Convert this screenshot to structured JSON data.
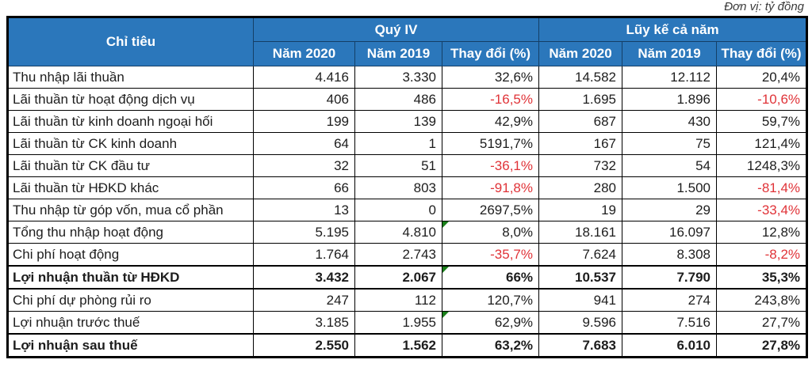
{
  "unit_note": "Đơn vị: tỷ đồng",
  "table": {
    "criteria_header": "Chỉ tiêu",
    "groups": [
      {
        "label": "Quý IV",
        "sub": [
          "Năm 2020",
          "Năm 2019",
          "Thay đổi (%)"
        ]
      },
      {
        "label": "Lũy kế cả năm",
        "sub": [
          "Năm 2020",
          "Năm 2019",
          "Thay đổi (%)"
        ]
      }
    ],
    "rows": [
      {
        "label": "Thu nhập lãi thuần",
        "values": [
          "4.416",
          "3.330",
          "32,6%",
          "14.582",
          "12.112",
          "20,4%"
        ],
        "bold": false,
        "red": [],
        "flags": []
      },
      {
        "label": "Lãi thuần từ hoạt động dịch vụ",
        "values": [
          "406",
          "486",
          "-16,5%",
          "1.695",
          "1.896",
          "-10,6%"
        ],
        "bold": false,
        "red": [
          2,
          5
        ],
        "flags": []
      },
      {
        "label": "Lãi thuần từ kinh doanh ngoại hối",
        "values": [
          "199",
          "139",
          "42,9%",
          "687",
          "430",
          "59,7%"
        ],
        "bold": false,
        "red": [],
        "flags": []
      },
      {
        "label": "Lãi thuần từ CK kinh doanh",
        "values": [
          "64",
          "1",
          "5191,7%",
          "167",
          "75",
          "121,4%"
        ],
        "bold": false,
        "red": [],
        "flags": []
      },
      {
        "label": "Lãi thuần từ CK đầu tư",
        "values": [
          "32",
          "51",
          "-36,1%",
          "732",
          "54",
          "1248,3%"
        ],
        "bold": false,
        "red": [
          2
        ],
        "flags": []
      },
      {
        "label": "Lãi thuần từ HĐKD khác",
        "values": [
          "66",
          "803",
          "-91,8%",
          "280",
          "1.500",
          "-81,4%"
        ],
        "bold": false,
        "red": [
          2,
          5
        ],
        "flags": []
      },
      {
        "label": "Thu nhập từ góp vốn, mua cổ phần",
        "values": [
          "13",
          "0",
          "2697,5%",
          "19",
          "29",
          "-33,4%"
        ],
        "bold": false,
        "red": [
          5
        ],
        "flags": []
      },
      {
        "label": "Tổng thu nhập hoạt động",
        "values": [
          "5.195",
          "4.810",
          "8,0%",
          "18.161",
          "16.097",
          "12,8%"
        ],
        "bold": false,
        "red": [],
        "flags": [
          2
        ]
      },
      {
        "label": "Chi phí hoạt động",
        "values": [
          "1.764",
          "2.743",
          "-35,7%",
          "7.624",
          "8.308",
          "-8,2%"
        ],
        "bold": false,
        "red": [
          2,
          5
        ],
        "flags": []
      },
      {
        "label": "Lợi nhuận thuần từ HĐKD",
        "values": [
          "3.432",
          "2.067",
          "66%",
          "10.537",
          "7.790",
          "35,3%"
        ],
        "bold": true,
        "red": [],
        "flags": [
          2
        ]
      },
      {
        "label": "Chi phí dự phòng rủi ro",
        "values": [
          "247",
          "112",
          "120,7%",
          "941",
          "274",
          "243,8%"
        ],
        "bold": false,
        "red": [],
        "flags": []
      },
      {
        "label": "Lợi nhuận trước thuế",
        "values": [
          "3.185",
          "1.955",
          "62,9%",
          "9.596",
          "7.516",
          "27,7%"
        ],
        "bold": false,
        "red": [],
        "flags": [
          2
        ]
      },
      {
        "label": "Lợi nhuận sau thuế",
        "values": [
          "2.550",
          "1.562",
          "63,2%",
          "7.683",
          "6.010",
          "27,8%"
        ],
        "bold": true,
        "red": [],
        "flags": []
      }
    ]
  },
  "colors": {
    "header_bg": "#2b77bb",
    "negative": "#e03338",
    "flag_green": "#1a7f1a",
    "border": "#000000"
  }
}
